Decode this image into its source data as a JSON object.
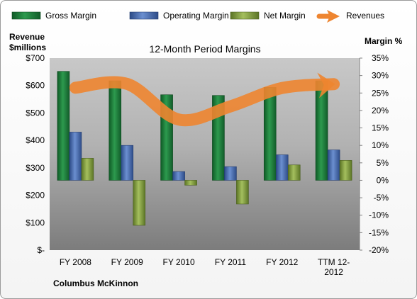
{
  "chart_data": {
    "type": "bar",
    "title": "12-Month Period Margins",
    "company": "Columbus McKinnon",
    "y_left_label_line1": "Revenue",
    "y_left_label_line2": "$millions",
    "y_right_label": "Margin %",
    "categories": [
      "FY 2008",
      "FY 2009",
      "FY 2010",
      "FY 2011",
      "FY 2012",
      "TTM 12-2012"
    ],
    "category_label_lines": [
      [
        "FY 2008"
      ],
      [
        "FY 2009"
      ],
      [
        "FY 2010"
      ],
      [
        "FY 2011"
      ],
      [
        "FY 2012"
      ],
      [
        "TTM 12-",
        "2012"
      ]
    ],
    "y_left_ticks": [
      "$-",
      "$100",
      "$200",
      "$300",
      "$400",
      "$500",
      "$600",
      "$700"
    ],
    "y_left_lim": [
      0,
      700
    ],
    "y_right_ticks": [
      "-20%",
      "-15%",
      "-10%",
      "-5%",
      "0%",
      "5%",
      "10%",
      "15%",
      "20%",
      "25%",
      "30%",
      "35%"
    ],
    "y_right_lim": [
      -20,
      35
    ],
    "grid": false,
    "legend_position": "top",
    "series": [
      {
        "name": "Gross Margin",
        "axis": "right",
        "kind": "bar",
        "color": "#1f7a3c",
        "values": [
          31.2,
          28.5,
          24.5,
          24.3,
          26.6,
          28.5
        ]
      },
      {
        "name": "Operating Margin",
        "axis": "right",
        "kind": "bar",
        "color": "#4a6fb0",
        "values": [
          13.8,
          10.0,
          2.5,
          3.9,
          7.3,
          8.7
        ]
      },
      {
        "name": "Net Margin",
        "axis": "right",
        "kind": "bar",
        "color": "#7d9a3c",
        "values": [
          6.3,
          -12.9,
          -1.4,
          -6.8,
          4.4,
          5.7
        ]
      },
      {
        "name": "Revenues",
        "axis": "left",
        "kind": "line",
        "color": "#ee8530",
        "values": [
          592,
          606,
          476,
          524,
          591,
          605
        ]
      }
    ]
  }
}
